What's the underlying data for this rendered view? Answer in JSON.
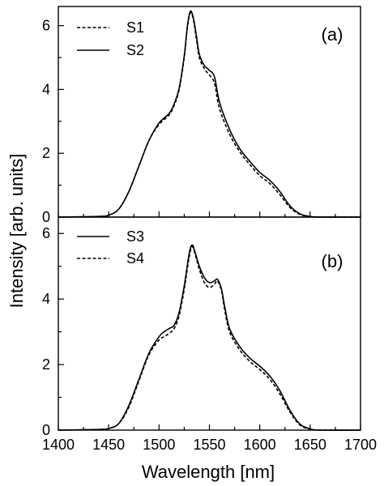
{
  "figure": {
    "ylabel": "Intensity [arb. units]",
    "xlabel": "Wavelength [nm]"
  },
  "chart_data": [
    {
      "type": "line",
      "panel_label": "(a)",
      "xlim": [
        1400,
        1700
      ],
      "ylim": [
        0,
        6.6
      ],
      "xticks": [
        1400,
        1450,
        1500,
        1550,
        1600,
        1650,
        1700
      ],
      "yticks": [
        0,
        2,
        4,
        6
      ],
      "legend_position": "top-left",
      "series": [
        {
          "name": "S1",
          "dash": "dashed",
          "x": [
            1400,
            1440,
            1450,
            1460,
            1470,
            1480,
            1490,
            1500,
            1510,
            1515,
            1520,
            1525,
            1528,
            1531,
            1534,
            1537,
            1540,
            1545,
            1550,
            1555,
            1560,
            1570,
            1580,
            1590,
            1600,
            1610,
            1620,
            1630,
            1640,
            1650,
            1660,
            1700
          ],
          "y": [
            0,
            0.02,
            0.06,
            0.25,
            0.8,
            1.6,
            2.4,
            2.9,
            3.2,
            3.5,
            4.0,
            5.0,
            5.9,
            6.4,
            6.2,
            5.6,
            5.0,
            4.65,
            4.45,
            4.2,
            3.4,
            2.6,
            2.05,
            1.65,
            1.3,
            1.05,
            0.7,
            0.3,
            0.08,
            0.02,
            0,
            0
          ]
        },
        {
          "name": "S2",
          "dash": "solid",
          "x": [
            1400,
            1440,
            1450,
            1460,
            1470,
            1480,
            1490,
            1500,
            1510,
            1515,
            1520,
            1525,
            1528,
            1531,
            1534,
            1537,
            1540,
            1545,
            1550,
            1555,
            1560,
            1570,
            1580,
            1590,
            1600,
            1610,
            1620,
            1630,
            1640,
            1650,
            1660,
            1700
          ],
          "y": [
            0,
            0.02,
            0.06,
            0.25,
            0.8,
            1.6,
            2.4,
            2.95,
            3.25,
            3.55,
            4.05,
            5.05,
            5.95,
            6.45,
            6.25,
            5.7,
            5.1,
            4.75,
            4.6,
            4.4,
            3.6,
            2.75,
            2.15,
            1.75,
            1.4,
            1.15,
            0.8,
            0.35,
            0.1,
            0.02,
            0,
            0
          ]
        }
      ]
    },
    {
      "type": "line",
      "panel_label": "(b)",
      "xlim": [
        1400,
        1700
      ],
      "ylim": [
        0,
        6.5
      ],
      "xticks": [
        1400,
        1450,
        1500,
        1550,
        1600,
        1650,
        1700
      ],
      "yticks": [
        0,
        2,
        4,
        6
      ],
      "legend_position": "top-left",
      "series": [
        {
          "name": "S3",
          "dash": "solid",
          "x": [
            1400,
            1440,
            1450,
            1460,
            1470,
            1480,
            1490,
            1500,
            1505,
            1510,
            1515,
            1520,
            1525,
            1530,
            1533,
            1536,
            1540,
            1545,
            1550,
            1555,
            1558,
            1562,
            1565,
            1570,
            1580,
            1590,
            1600,
            1610,
            1620,
            1630,
            1640,
            1650,
            1660,
            1700
          ],
          "y": [
            0,
            0.02,
            0.05,
            0.2,
            0.75,
            1.55,
            2.35,
            2.85,
            3.0,
            3.1,
            3.2,
            3.6,
            4.4,
            5.4,
            5.65,
            5.4,
            5.0,
            4.65,
            4.5,
            4.55,
            4.6,
            4.3,
            3.8,
            3.1,
            2.55,
            2.2,
            1.95,
            1.65,
            1.2,
            0.6,
            0.18,
            0.04,
            0,
            0
          ]
        },
        {
          "name": "S4",
          "dash": "dashed",
          "x": [
            1400,
            1440,
            1450,
            1460,
            1470,
            1480,
            1490,
            1500,
            1505,
            1510,
            1515,
            1520,
            1525,
            1530,
            1533,
            1536,
            1540,
            1545,
            1550,
            1555,
            1558,
            1562,
            1565,
            1570,
            1580,
            1590,
            1600,
            1610,
            1620,
            1630,
            1640,
            1650,
            1660,
            1700
          ],
          "y": [
            0,
            0.02,
            0.05,
            0.2,
            0.7,
            1.5,
            2.3,
            2.75,
            2.85,
            2.95,
            3.1,
            3.5,
            4.3,
            5.3,
            5.6,
            5.35,
            4.9,
            4.5,
            4.35,
            4.45,
            4.55,
            4.25,
            3.7,
            3.0,
            2.45,
            2.1,
            1.85,
            1.55,
            1.1,
            0.55,
            0.15,
            0.03,
            0,
            0
          ]
        }
      ]
    }
  ]
}
